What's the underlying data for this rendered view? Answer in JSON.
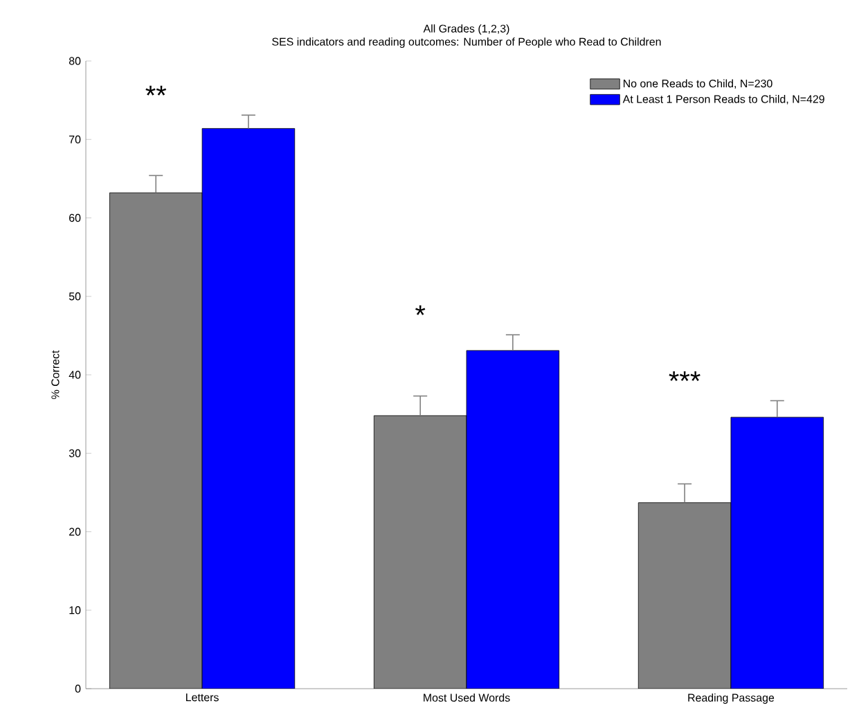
{
  "chart_data": {
    "type": "bar",
    "title": "All Grades (1,2,3)",
    "subtitle": "SES indicators and reading outcomes: Number of People who Read to Children",
    "ylabel": "% Correct",
    "categories": [
      "Letters",
      "Most Used Words",
      "Reading Passage"
    ],
    "series": [
      {
        "name": "No one Reads to Child, N=230",
        "color": "#808080",
        "values": [
          63.2,
          34.8,
          23.7
        ],
        "errors": [
          2.2,
          2.5,
          2.4
        ]
      },
      {
        "name": "At Least 1 Person Reads to Child, N=429",
        "color": "#0000ff",
        "values": [
          71.4,
          43.1,
          34.6
        ],
        "errors": [
          1.7,
          2.0,
          2.1
        ]
      }
    ],
    "ylim": [
      0,
      80
    ],
    "yticks": [
      0,
      10,
      20,
      30,
      40,
      50,
      60,
      70,
      80
    ],
    "legend": "top right",
    "grid": false,
    "annotations": [
      "**",
      "*",
      "***"
    ]
  }
}
